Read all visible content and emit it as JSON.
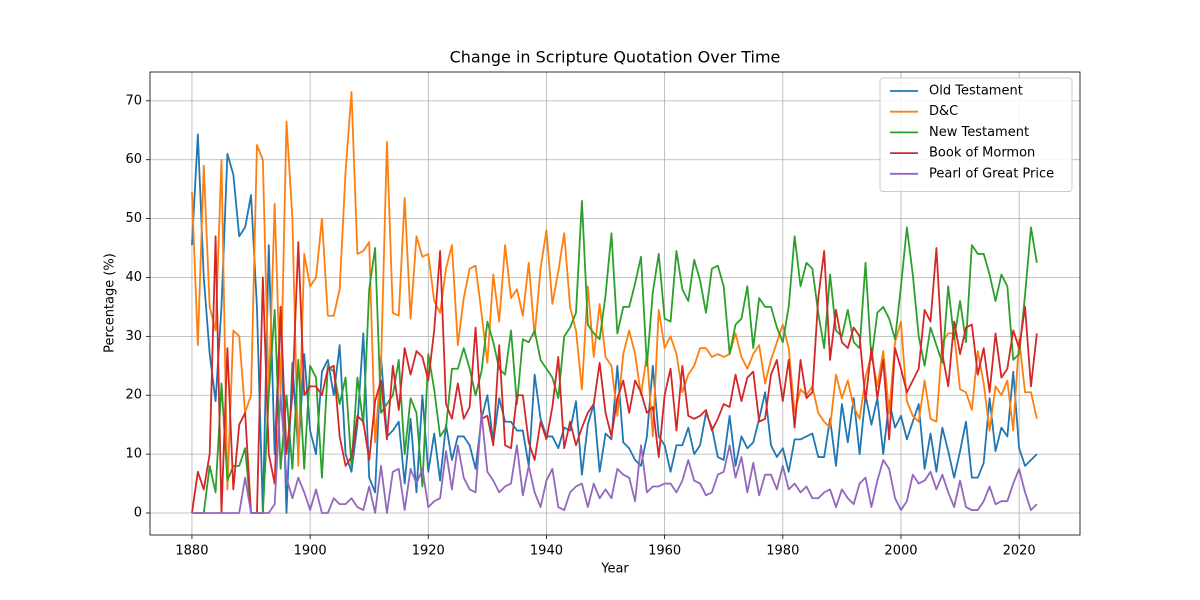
{
  "chart_data": {
    "type": "line",
    "title": "Change in Scripture Quotation Over Time",
    "x_label": "Year",
    "y_label": "Percentage (%)",
    "x": [
      1880,
      1881,
      1882,
      1883,
      1884,
      1885,
      1886,
      1887,
      1888,
      1889,
      1890,
      1891,
      1892,
      1893,
      1894,
      1895,
      1896,
      1897,
      1898,
      1899,
      1900,
      1901,
      1902,
      1903,
      1904,
      1905,
      1906,
      1907,
      1908,
      1909,
      1910,
      1911,
      1912,
      1913,
      1914,
      1915,
      1916,
      1917,
      1918,
      1919,
      1920,
      1921,
      1922,
      1923,
      1924,
      1925,
      1926,
      1927,
      1928,
      1929,
      1930,
      1931,
      1932,
      1933,
      1934,
      1935,
      1936,
      1937,
      1938,
      1939,
      1940,
      1941,
      1942,
      1943,
      1944,
      1945,
      1946,
      1947,
      1948,
      1949,
      1950,
      1951,
      1952,
      1953,
      1954,
      1955,
      1956,
      1957,
      1958,
      1959,
      1960,
      1961,
      1962,
      1963,
      1964,
      1965,
      1966,
      1967,
      1968,
      1969,
      1970,
      1971,
      1972,
      1973,
      1974,
      1975,
      1976,
      1977,
      1978,
      1979,
      1980,
      1981,
      1982,
      1983,
      1984,
      1985,
      1986,
      1987,
      1988,
      1989,
      1990,
      1991,
      1992,
      1993,
      1994,
      1995,
      1996,
      1997,
      1998,
      1999,
      2000,
      2001,
      2002,
      2003,
      2004,
      2005,
      2006,
      2007,
      2008,
      2009,
      2010,
      2011,
      2012,
      2013,
      2014,
      2015,
      2016,
      2017,
      2018,
      2019,
      2020,
      2021,
      2022,
      2023
    ],
    "series": [
      {
        "name": "Old Testament",
        "color": "#1f77b4",
        "values": [
          45.5,
          64.3,
          40,
          27,
          19,
          35,
          61,
          57.5,
          47,
          48.5,
          54,
          35,
          0,
          45.5,
          10,
          35,
          0,
          25.5,
          10,
          27,
          14,
          10,
          24,
          26,
          20,
          28.5,
          10,
          7,
          15,
          30.5,
          6,
          3.5,
          26.5,
          13,
          14,
          15.5,
          5,
          16,
          3.5,
          20,
          7,
          13.5,
          5.5,
          15,
          9,
          13,
          13,
          11.5,
          7.5,
          16,
          20,
          12,
          19.5,
          15.5,
          15.5,
          14,
          14,
          8,
          23.5,
          16,
          13,
          13,
          11,
          14.5,
          14,
          19,
          6.5,
          15,
          18.5,
          7,
          13.5,
          12.5,
          25,
          12,
          11,
          9,
          8,
          13,
          25,
          13,
          11.5,
          7,
          11.5,
          11.5,
          14.5,
          10,
          11.5,
          17,
          14.5,
          9.5,
          9,
          16.5,
          8,
          13,
          11,
          12,
          16,
          20.5,
          11.5,
          9.5,
          11,
          7,
          12.5,
          12.5,
          13,
          13.5,
          9.5,
          9.5,
          16,
          8,
          18.5,
          12,
          19.5,
          10,
          20,
          15,
          19.5,
          10,
          19,
          14.5,
          16.5,
          12.5,
          15.5,
          18.5,
          7.5,
          13.5,
          7,
          14.5,
          10.5,
          6,
          10.5,
          15.5,
          6,
          6,
          8.5,
          19.5,
          10.5,
          14.5,
          13,
          24,
          11,
          8,
          9,
          10
        ]
      },
      {
        "name": "D&C",
        "color": "#ff7f0e",
        "values": [
          54.5,
          28.5,
          59,
          35,
          31,
          60,
          4,
          31,
          30,
          17,
          20,
          62.5,
          60,
          20,
          52.5,
          20,
          66.5,
          50,
          8,
          44,
          38.5,
          40,
          50,
          33.5,
          33.5,
          38,
          58,
          71.5,
          44,
          44.5,
          46,
          12,
          25,
          63,
          34,
          33.5,
          53.5,
          33,
          47,
          43.5,
          44,
          36,
          34,
          41.5,
          45.5,
          28.5,
          36.5,
          41.5,
          42,
          34,
          25.5,
          40.5,
          32.5,
          45.5,
          36.5,
          38,
          33.5,
          42.5,
          30,
          41.5,
          48,
          35.5,
          41,
          47.5,
          35,
          31,
          21,
          38.5,
          26.5,
          35.5,
          26.5,
          25,
          16.5,
          27,
          31,
          27,
          20,
          27,
          13,
          34.5,
          28,
          30,
          27,
          20.5,
          23.5,
          25,
          28,
          28,
          26.5,
          27,
          26.5,
          27,
          30.5,
          26.5,
          24.5,
          27,
          28.5,
          22,
          26,
          29,
          32,
          28,
          17,
          21,
          20,
          21.5,
          17,
          15.5,
          14.5,
          23.5,
          19.5,
          22.5,
          18,
          16,
          23,
          27,
          21.5,
          27.5,
          17,
          29,
          32.5,
          19,
          16.5,
          15.5,
          22.5,
          16,
          15.5,
          29,
          30.5,
          30.5,
          21,
          20.5,
          17.5,
          27.5,
          22,
          14,
          21.5,
          20,
          22.5,
          14,
          29.5,
          20.5,
          20.5,
          16
        ]
      },
      {
        "name": "New Testament",
        "color": "#2ca02c",
        "values": [
          0,
          0,
          0,
          8,
          3.5,
          22,
          5.5,
          8,
          8,
          11,
          0,
          0,
          0,
          20,
          34.5,
          7.5,
          20,
          7.5,
          26,
          7.5,
          25,
          23,
          6,
          25,
          24,
          18.5,
          23,
          8,
          23,
          15,
          38,
          45,
          17,
          18.5,
          20,
          26,
          10,
          19.5,
          17,
          4.5,
          27,
          21,
          13,
          14.5,
          24.5,
          24.5,
          28,
          24.5,
          20,
          24,
          32.5,
          29,
          24.5,
          23.5,
          31,
          18.5,
          29.5,
          29,
          31,
          26,
          24.5,
          23,
          19.5,
          30,
          31.5,
          34,
          53,
          32,
          30.5,
          29.5,
          37,
          47.5,
          30.5,
          35,
          35,
          39,
          43.5,
          25,
          37.5,
          44,
          33,
          32.5,
          44.5,
          38,
          36,
          43,
          39.5,
          34,
          41.5,
          42,
          38.5,
          27,
          32,
          33,
          38.5,
          28,
          36.5,
          35,
          35,
          31.5,
          29,
          35,
          47,
          38.5,
          42.5,
          41.5,
          34,
          28,
          40.5,
          31,
          30,
          34.5,
          29,
          28,
          42.5,
          26,
          34,
          35,
          33,
          29.5,
          38.5,
          48.5,
          40.5,
          30,
          25,
          31.5,
          28.5,
          25.5,
          38.5,
          29.5,
          36,
          29,
          45.5,
          44,
          44,
          40.5,
          36,
          40.5,
          38.5,
          26,
          27,
          37,
          48.5,
          42.5
        ]
      },
      {
        "name": "Book of Mormon",
        "color": "#d62728",
        "values": [
          0,
          7,
          4,
          10,
          47,
          0,
          28,
          4,
          15,
          17,
          0,
          0,
          40,
          10,
          5,
          35,
          10,
          20,
          46,
          20,
          21.5,
          21.5,
          20,
          24.5,
          25,
          13,
          8,
          9.5,
          16.5,
          15.5,
          9,
          19,
          22.5,
          12.5,
          25,
          17.5,
          28,
          23.5,
          27.5,
          26.5,
          22.5,
          31,
          44.5,
          18.5,
          16,
          22,
          16,
          18,
          31.5,
          16,
          16.5,
          11.5,
          28.5,
          11.5,
          11,
          20,
          20,
          12,
          9,
          15.5,
          12.5,
          18,
          26.5,
          11,
          15.5,
          11.5,
          14.5,
          17,
          18.5,
          25.5,
          17,
          13,
          19.5,
          22.5,
          17,
          22.5,
          20.5,
          17,
          18,
          9.5,
          20,
          24.5,
          14,
          25,
          16.5,
          16,
          16.5,
          17.5,
          14,
          16,
          18.5,
          18,
          23.5,
          19,
          23,
          24,
          15.5,
          16,
          23.5,
          26,
          19,
          26,
          14.5,
          26,
          19.5,
          20.5,
          36.5,
          44.5,
          26,
          34.5,
          29,
          28,
          31.5,
          30,
          19,
          28,
          19.5,
          26,
          12.5,
          28,
          24.5,
          20.5,
          22.5,
          24.5,
          34.5,
          32.5,
          45,
          27,
          21.5,
          32.5,
          27,
          31.5,
          32,
          23.5,
          28,
          20.5,
          30.5,
          23,
          24.5,
          31,
          28,
          35,
          21.5,
          30.5
        ]
      },
      {
        "name": "Pearl of Great Price",
        "color": "#9467bd",
        "values": [
          0,
          0,
          0,
          0,
          0,
          0,
          0,
          0,
          0,
          6,
          0,
          0,
          0,
          0,
          1.5,
          20,
          6,
          2.5,
          6,
          3.5,
          0.5,
          4,
          0,
          0,
          2.5,
          1.5,
          1.5,
          2.5,
          1,
          0.5,
          4.5,
          0,
          8,
          0,
          7,
          7.5,
          0.5,
          7.5,
          5,
          7.5,
          1,
          2,
          2.5,
          10.5,
          4,
          11.5,
          6,
          4,
          3.5,
          17,
          7,
          5.5,
          3.5,
          4.5,
          5,
          11.5,
          3,
          8,
          3.5,
          1,
          5.5,
          7.5,
          1,
          0.5,
          3.5,
          4.5,
          5,
          1,
          5,
          2.5,
          4,
          2.5,
          7.5,
          6.5,
          6,
          2,
          11.5,
          3.5,
          4.5,
          4.5,
          5,
          5,
          3.5,
          5.5,
          9,
          5.5,
          5,
          3,
          3.5,
          6.5,
          7,
          11.5,
          6,
          9.5,
          3.5,
          8.5,
          3,
          6.5,
          6.5,
          4,
          8,
          4,
          5,
          3.5,
          4.5,
          2.5,
          2.5,
          3.5,
          4,
          1,
          4,
          2.5,
          1.5,
          5,
          6,
          1,
          5.5,
          9,
          7.5,
          2.5,
          0.5,
          2,
          6.5,
          5,
          5.5,
          7,
          4,
          6.5,
          3.5,
          1,
          5.5,
          1,
          0.5,
          0.5,
          2,
          4.5,
          1.5,
          2,
          2,
          5,
          7.5,
          3.5,
          0.5,
          1.5
        ]
      }
    ],
    "xlim": [
      1872.9,
      2030.3
    ],
    "ylim": [
      -3.74,
      74.9
    ],
    "xticks": [
      1880,
      1900,
      1920,
      1940,
      1960,
      1980,
      2000,
      2020
    ],
    "yticks": [
      0,
      10,
      20,
      30,
      40,
      50,
      60,
      70
    ],
    "grid": true,
    "legend": "upper right"
  }
}
